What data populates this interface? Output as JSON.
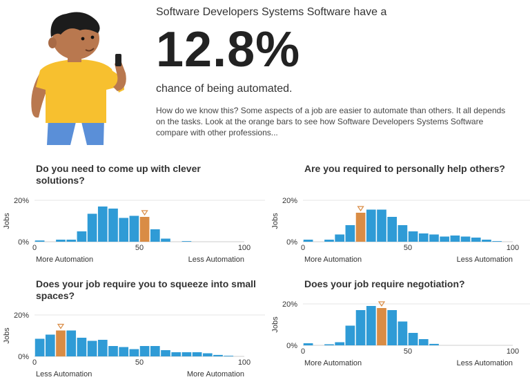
{
  "header": {
    "intro": "Software Developers Systems Software have a",
    "percent": "12.8%",
    "chance": "chance of being automated.",
    "explanation": "How do we know this? Some aspects of a job are easier to automate than others. It all depends on the tasks. Look at the orange bars to see how Software Developers Systems Software compare with other professions..."
  },
  "questions": {
    "q1": "Do you need to come up with clever solutions?",
    "q2": "Are you required to personally help others?",
    "q3": "Does your job require you to squeeze into small spaces?",
    "q4": "Does your job require negotiation?"
  },
  "colors": {
    "bar": "#2f9bd6",
    "highlight": "#d98c45",
    "axis": "#cccccc",
    "gridline": "#e6e6e6"
  },
  "chart_data": [
    {
      "type": "bar",
      "ylabel": "Jobs",
      "xlim": [
        0,
        100
      ],
      "ylim": [
        0,
        20
      ],
      "xticks": [
        "0",
        "50",
        "100"
      ],
      "yticks": [
        "0%",
        "20%"
      ],
      "left_label": "More Automation",
      "right_label": "Less Automation",
      "values": [
        0.6,
        0,
        1,
        1,
        5,
        13.5,
        17,
        16,
        11.5,
        12.5,
        12,
        6,
        1.5,
        0,
        0.3,
        0,
        0,
        0,
        0,
        0
      ],
      "highlight_index": 10
    },
    {
      "type": "bar",
      "ylabel": "Jobs",
      "xlim": [
        0,
        100
      ],
      "ylim": [
        0,
        20
      ],
      "xticks": [
        "0",
        "50",
        "100"
      ],
      "yticks": [
        "0%",
        "20%"
      ],
      "left_label": "More Automation",
      "right_label": "Less Automation",
      "values": [
        1,
        0,
        1,
        3.5,
        8,
        14,
        15.5,
        15.5,
        12,
        8,
        5,
        4,
        3.5,
        2.5,
        3,
        2.5,
        2,
        1,
        0.3,
        0
      ],
      "highlight_index": 5
    },
    {
      "type": "bar",
      "ylabel": "Jobs",
      "xlim": [
        0,
        100
      ],
      "ylim": [
        0,
        20
      ],
      "xticks": [
        "0",
        "50",
        "100"
      ],
      "yticks": [
        "0%",
        "20%"
      ],
      "left_label": "Less Automation",
      "right_label": "More Automation",
      "values": [
        8.5,
        10.5,
        12.5,
        12.5,
        9,
        7.5,
        8,
        5,
        4.5,
        3.5,
        5,
        5,
        3,
        2,
        2,
        2,
        1.5,
        0.7,
        0.3,
        0
      ],
      "highlight_index": 2
    },
    {
      "type": "bar",
      "ylabel": "Jobs",
      "xlim": [
        0,
        100
      ],
      "ylim": [
        0,
        20
      ],
      "xticks": [
        "0",
        "50",
        "100"
      ],
      "yticks": [
        "0%",
        "20%"
      ],
      "left_label": "More Automation",
      "right_label": "Less Automation",
      "values": [
        1,
        0,
        0.5,
        1.5,
        9.5,
        17,
        19,
        18,
        17,
        11.5,
        6,
        3,
        0.7,
        0,
        0,
        0,
        0,
        0,
        0,
        0
      ],
      "highlight_index": 7
    }
  ]
}
